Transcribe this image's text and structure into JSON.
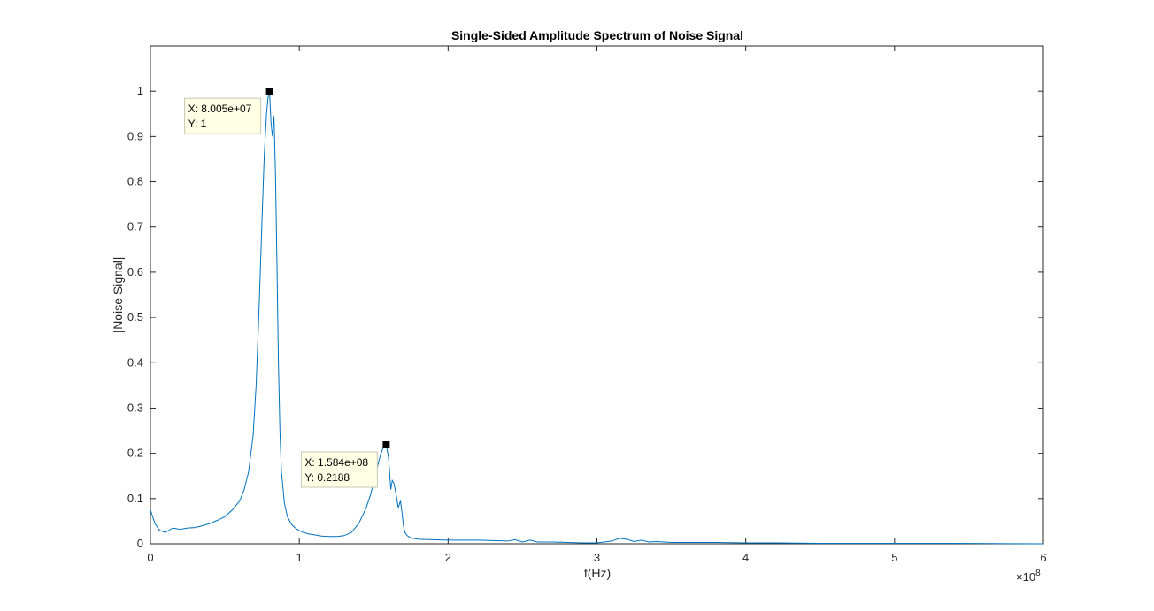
{
  "chart_data": {
    "type": "line",
    "title": "Single-Sided Amplitude Spectrum of Noise Signal",
    "xlabel": "f(Hz)",
    "ylabel": "|Noise Signal|",
    "xlim": [
      0,
      600000000
    ],
    "ylim": [
      0,
      1.1
    ],
    "x_ticks": [
      0,
      100000000,
      200000000,
      300000000,
      400000000,
      500000000,
      600000000
    ],
    "x_tick_labels": [
      "0",
      "1",
      "2",
      "3",
      "4",
      "5",
      "6"
    ],
    "x_exponent_label": "×10",
    "x_exponent_power": "8",
    "y_ticks": [
      0,
      0.1,
      0.2,
      0.3,
      0.4,
      0.5,
      0.6,
      0.7,
      0.8,
      0.9,
      1
    ],
    "y_tick_labels": [
      "0",
      "0.1",
      "0.2",
      "0.3",
      "0.4",
      "0.5",
      "0.6",
      "0.7",
      "0.8",
      "0.9",
      "1"
    ],
    "grid": false,
    "line_color": "#0072BD",
    "series": [
      {
        "x": [
          0,
          1000000,
          3000000,
          6000000,
          10000000,
          15000000,
          20000000,
          25000000,
          30000000,
          35000000,
          40000000,
          45000000,
          50000000,
          55000000,
          60000000,
          63000000,
          66000000,
          69000000,
          71000000,
          73000000,
          75000000,
          76500000,
          78000000,
          79000000,
          80050000,
          81000000,
          82000000,
          83000000,
          84000000,
          85000000,
          86000000,
          87000000,
          88000000,
          90000000,
          92000000,
          95000000,
          98000000,
          102000000,
          106000000,
          110000000,
          115000000,
          120000000,
          125000000,
          130000000,
          135000000,
          140000000,
          145000000,
          148000000,
          151000000,
          154000000,
          156000000,
          157500000,
          158400000,
          160000000,
          161500000,
          162500000,
          163500000,
          165000000,
          166500000,
          168000000,
          169000000,
          170000000,
          171000000,
          172500000,
          175000000,
          180000000,
          190000000,
          200000000,
          220000000,
          240000000,
          245000000,
          250000000,
          255000000,
          260000000,
          270000000,
          280000000,
          290000000,
          300000000,
          310000000,
          315000000,
          320000000,
          325000000,
          330000000,
          335000000,
          340000000,
          350000000,
          360000000,
          380000000,
          400000000,
          420000000,
          450000000,
          480000000,
          500000000,
          540000000,
          600000000
        ],
        "y": [
          0.075,
          0.065,
          0.045,
          0.03,
          0.025,
          0.035,
          0.032,
          0.035,
          0.036,
          0.04,
          0.045,
          0.052,
          0.06,
          0.075,
          0.095,
          0.12,
          0.16,
          0.24,
          0.35,
          0.52,
          0.72,
          0.86,
          0.95,
          0.985,
          1.0,
          0.93,
          0.9,
          0.945,
          0.82,
          0.62,
          0.4,
          0.25,
          0.16,
          0.09,
          0.06,
          0.042,
          0.033,
          0.026,
          0.022,
          0.02,
          0.017,
          0.016,
          0.016,
          0.018,
          0.025,
          0.045,
          0.08,
          0.11,
          0.15,
          0.19,
          0.21,
          0.215,
          0.2188,
          0.19,
          0.12,
          0.14,
          0.135,
          0.11,
          0.08,
          0.095,
          0.07,
          0.04,
          0.025,
          0.018,
          0.013,
          0.01,
          0.009,
          0.008,
          0.008,
          0.006,
          0.009,
          0.004,
          0.008,
          0.004,
          0.004,
          0.003,
          0.002,
          0.002,
          0.006,
          0.012,
          0.01,
          0.005,
          0.008,
          0.004,
          0.005,
          0.003,
          0.003,
          0.003,
          0.002,
          0.002,
          0.001,
          0.001,
          0.001,
          0.001,
          0.0
        ]
      }
    ],
    "annotations": [
      {
        "x": 80050000,
        "y": 1.0,
        "line1": "X: 8.005e+07",
        "line2": "Y: 1"
      },
      {
        "x": 158400000,
        "y": 0.2188,
        "line1": "X: 1.584e+08",
        "line2": "Y: 0.2188"
      }
    ]
  }
}
